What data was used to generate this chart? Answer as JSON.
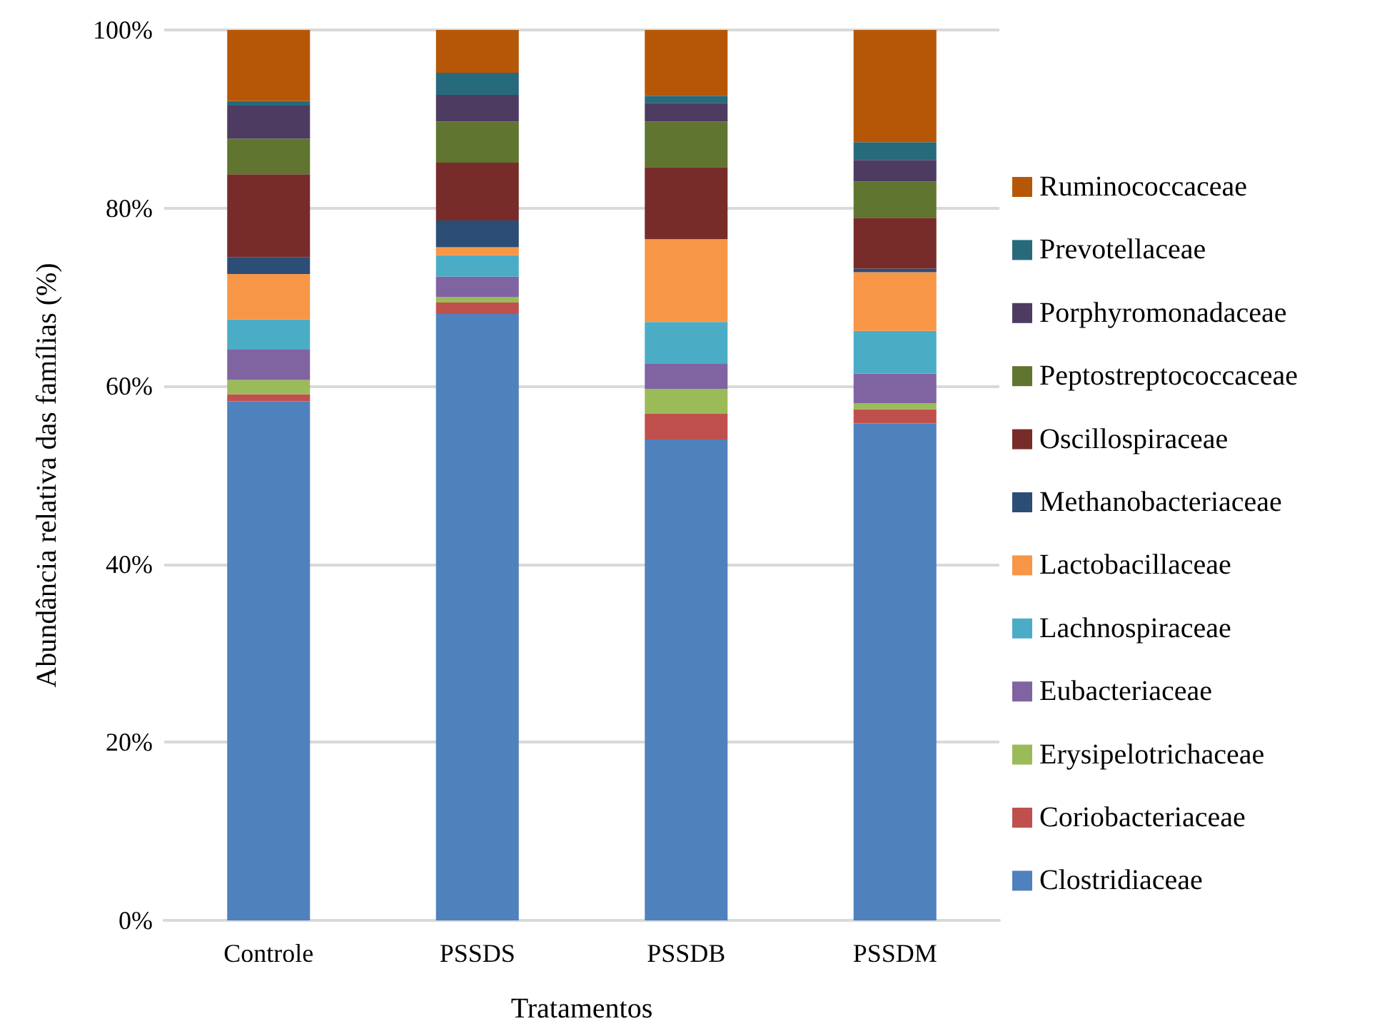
{
  "chart_data": {
    "type": "bar",
    "stacked": true,
    "xlabel": "Tratamentos",
    "ylabel": "Abundância relativa das famílias (%)",
    "categories": [
      "Controle",
      "PSSDS",
      "PSSDB",
      "PSSDM"
    ],
    "series": [
      {
        "name": "Clostridiaceae",
        "color": "#4f81bd",
        "values": [
          58.3,
          68.1,
          54.0,
          55.8
        ]
      },
      {
        "name": "Coriobacteriaceae",
        "color": "#c0504d",
        "values": [
          0.8,
          1.3,
          2.9,
          1.6
        ]
      },
      {
        "name": "Erysipelotrichaceae",
        "color": "#9bbb59",
        "values": [
          1.6,
          0.6,
          2.8,
          0.7
        ]
      },
      {
        "name": "Eubacteriaceae",
        "color": "#8064a2",
        "values": [
          3.4,
          2.3,
          2.8,
          3.3
        ]
      },
      {
        "name": "Lachnospiraceae",
        "color": "#4bacc6",
        "values": [
          3.4,
          2.4,
          4.7,
          4.8
        ]
      },
      {
        "name": "Lactobacillaceae",
        "color": "#f79646",
        "values": [
          5.1,
          0.9,
          9.3,
          6.6
        ]
      },
      {
        "name": "Methanobacteriaceae",
        "color": "#2c4d75",
        "values": [
          1.9,
          3.0,
          0,
          0.4
        ]
      },
      {
        "name": "Oscillospiraceae",
        "color": "#772c2a",
        "values": [
          9.3,
          6.5,
          8.1,
          5.7
        ]
      },
      {
        "name": "Peptostreptococcaceae",
        "color": "#5f7530",
        "values": [
          4.0,
          4.6,
          5.1,
          4.1
        ]
      },
      {
        "name": "Porphyromonadaceae",
        "color": "#4d3b62",
        "values": [
          3.7,
          3.0,
          2.1,
          2.4
        ]
      },
      {
        "name": "Prevotellaceae",
        "color": "#276a7c",
        "values": [
          0.5,
          2.5,
          0.8,
          2.0
        ]
      },
      {
        "name": "Ruminococcaceae",
        "color": "#b65708",
        "values": [
          8.0,
          4.8,
          7.4,
          12.6
        ]
      }
    ],
    "ylim": [
      0,
      100
    ],
    "yticks": [
      {
        "value": 0,
        "label": "0%"
      },
      {
        "value": 20,
        "label": "20%"
      },
      {
        "value": 40,
        "label": "40%"
      },
      {
        "value": 60,
        "label": "60%"
      },
      {
        "value": 80,
        "label": "80%"
      },
      {
        "value": 100,
        "label": "100%"
      }
    ],
    "grid": "y",
    "legend": "right"
  }
}
